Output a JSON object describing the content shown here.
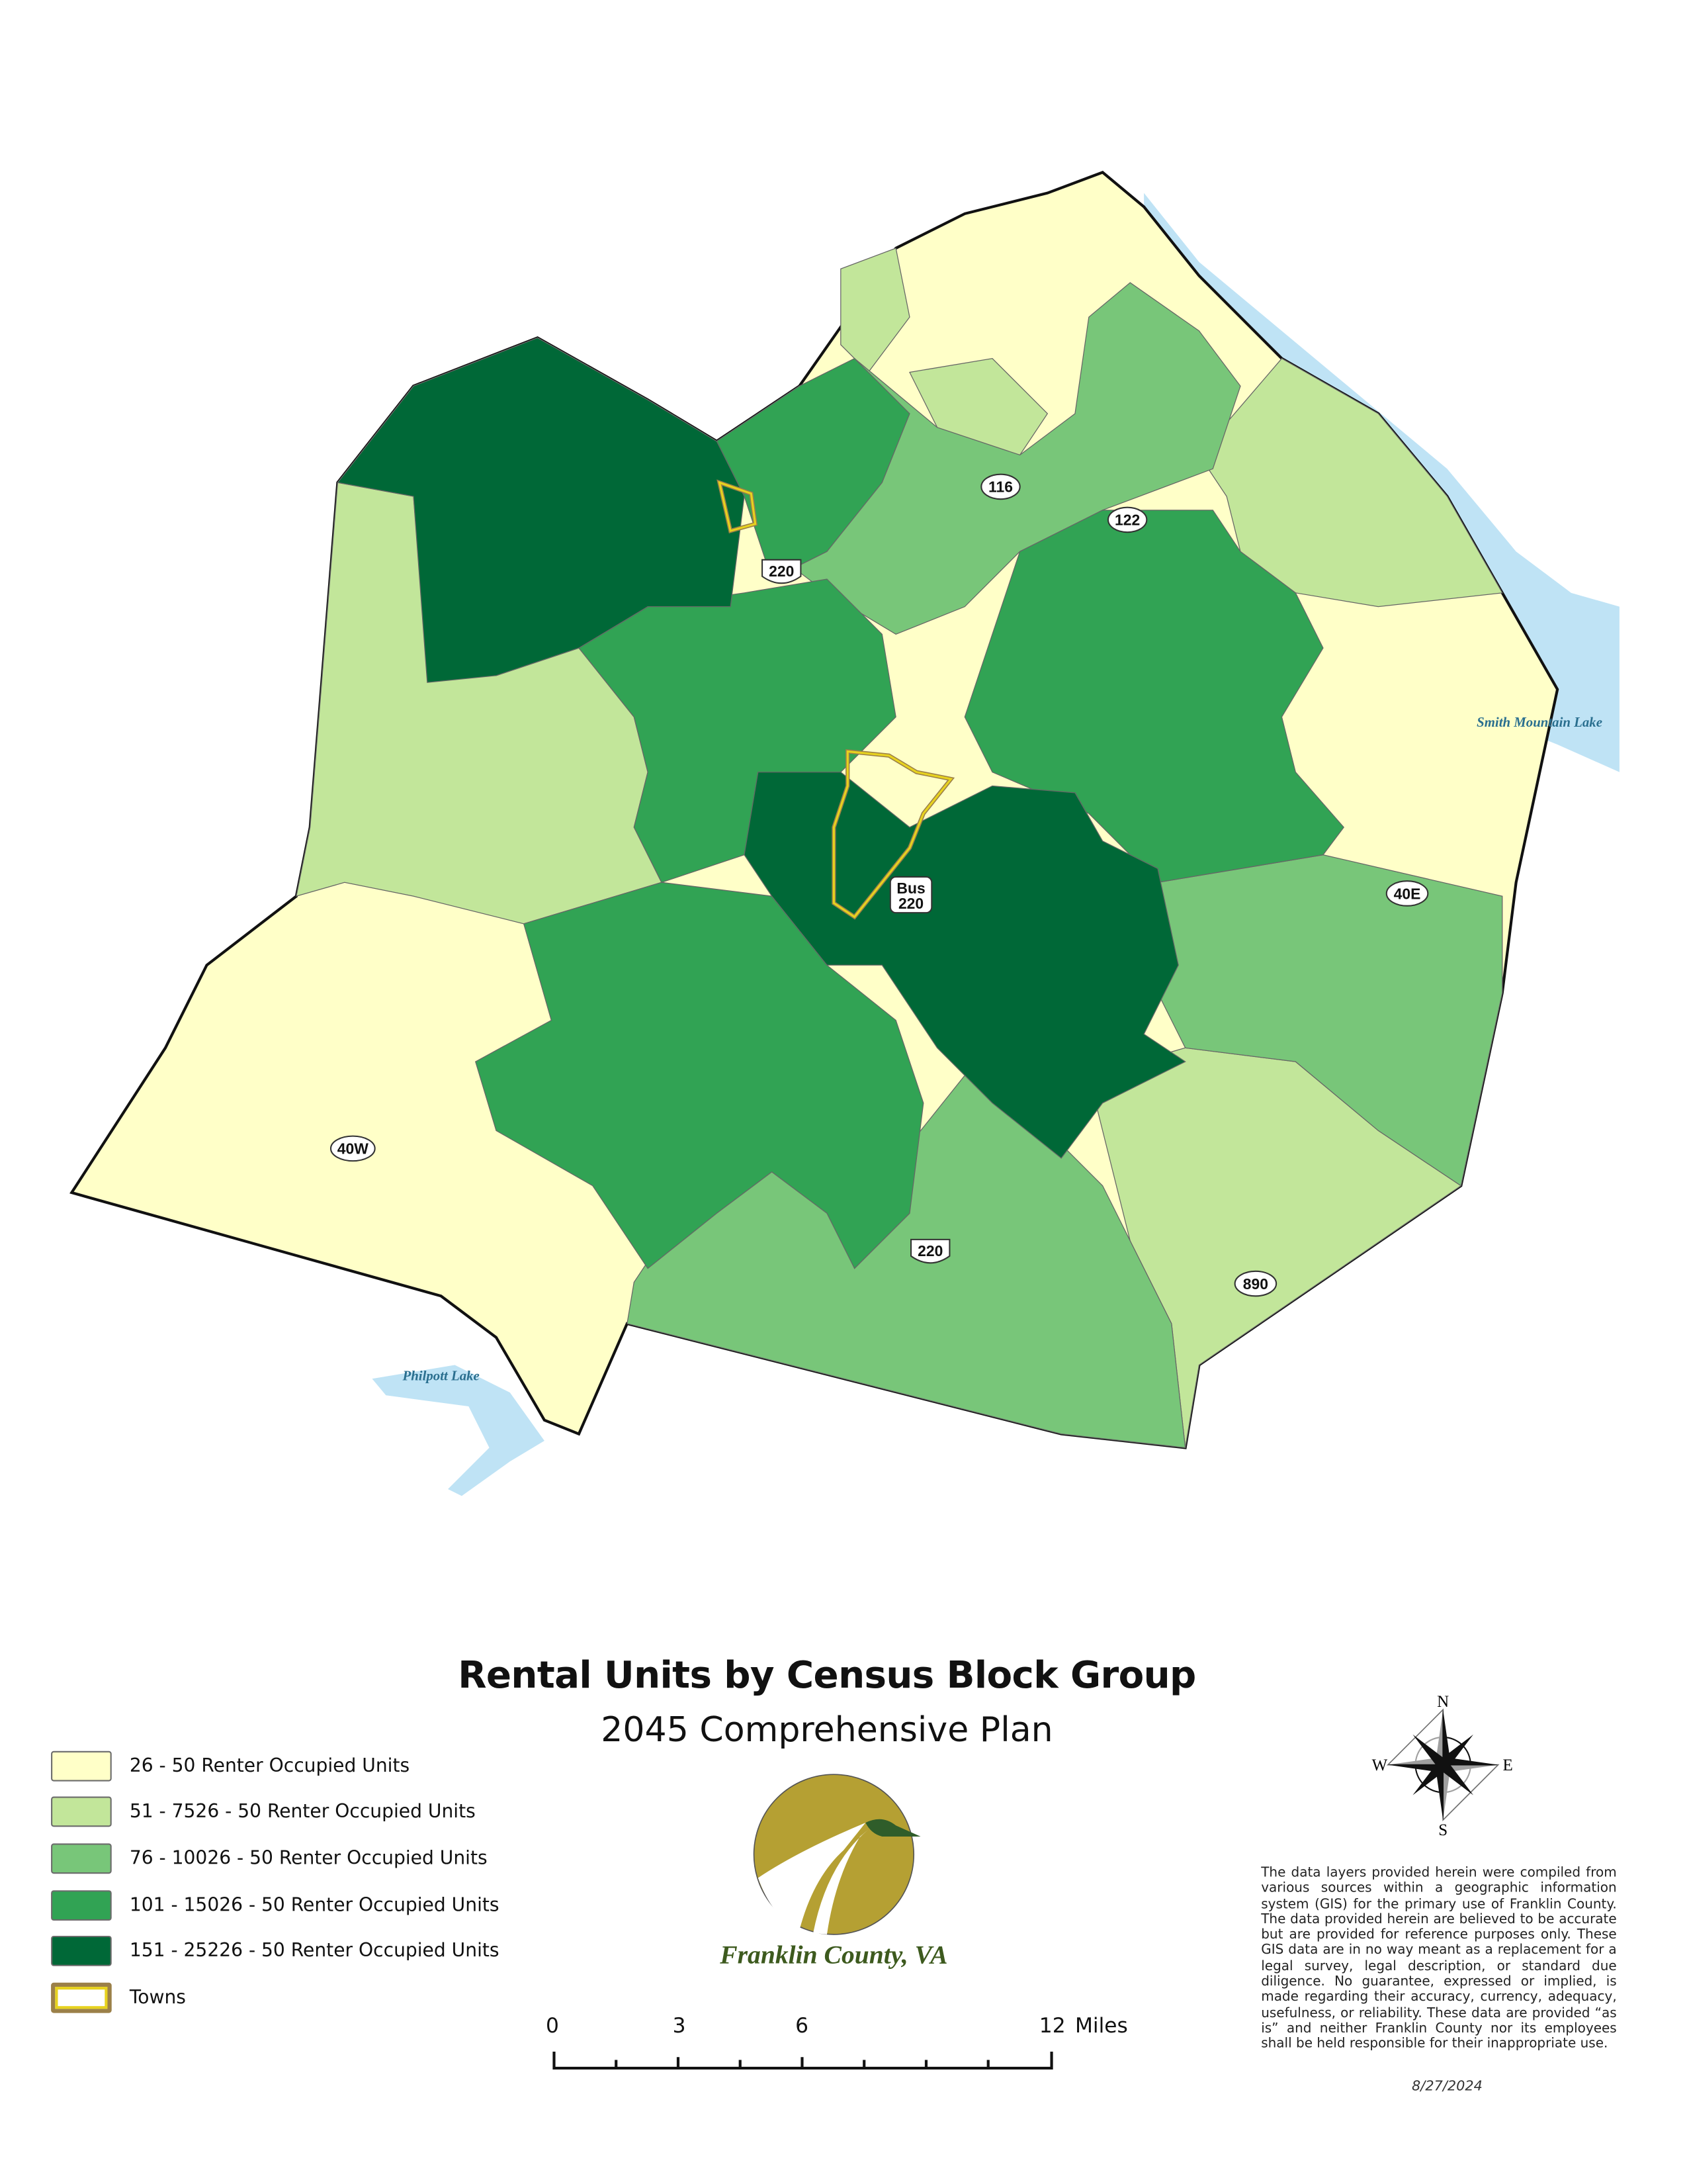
{
  "map": {
    "title": "Rental Units by Census Block Group",
    "subtitle": "2045 Comprehensive Plan",
    "road_labels": [
      "116",
      "122",
      "220",
      "Bus",
      "220",
      "40E",
      "40W",
      "220",
      "890"
    ],
    "lake_labels": [
      "Smith Mountain Lake",
      "Philpott Lake"
    ]
  },
  "legend": {
    "items": [
      {
        "label": "26 - 50 Renter Occupied Units",
        "color": "#ffffc8"
      },
      {
        "label": "51 - 7526 - 50 Renter Occupied Units",
        "color": "#c2e69a"
      },
      {
        "label": "76 - 10026 - 50 Renter Occupied Units",
        "color": "#78c679"
      },
      {
        "label": "101 - 15026 - 50 Renter Occupied Units",
        "color": "#31a354"
      },
      {
        "label": "151 - 25226 - 50 Renter Occupied Units",
        "color": "#006837"
      },
      {
        "label": "Towns",
        "color": "#e7d21e"
      }
    ]
  },
  "branding": {
    "name": "Franklin County, VA",
    "logo_color": "#b5a033"
  },
  "scale_bar": {
    "labels": [
      "0",
      "3",
      "6",
      "12"
    ],
    "unit": "Miles"
  },
  "compass": {
    "n": "N",
    "s": "S",
    "e": "E",
    "w": "W"
  },
  "disclaimer": "The data layers provided herein were compiled from various sources within a geographic information system (GIS) for the primary use of Franklin County. The data provided herein are believed to be accurate but are provided for reference purposes only. These GIS data are in no way meant as a replacement for a legal survey, legal description, or standard due diligence. No guarantee, expressed or implied, is made regarding their accuracy, currency, adequacy, usefulness, or reliability. These data are provided “as is” and neither Franklin County nor its employees shall be held responsible for their inappropriate use.",
  "date": "8/27/2024",
  "colors": {
    "water": "#bfe3f5",
    "boundary": "#111111",
    "roads": "#555566"
  }
}
